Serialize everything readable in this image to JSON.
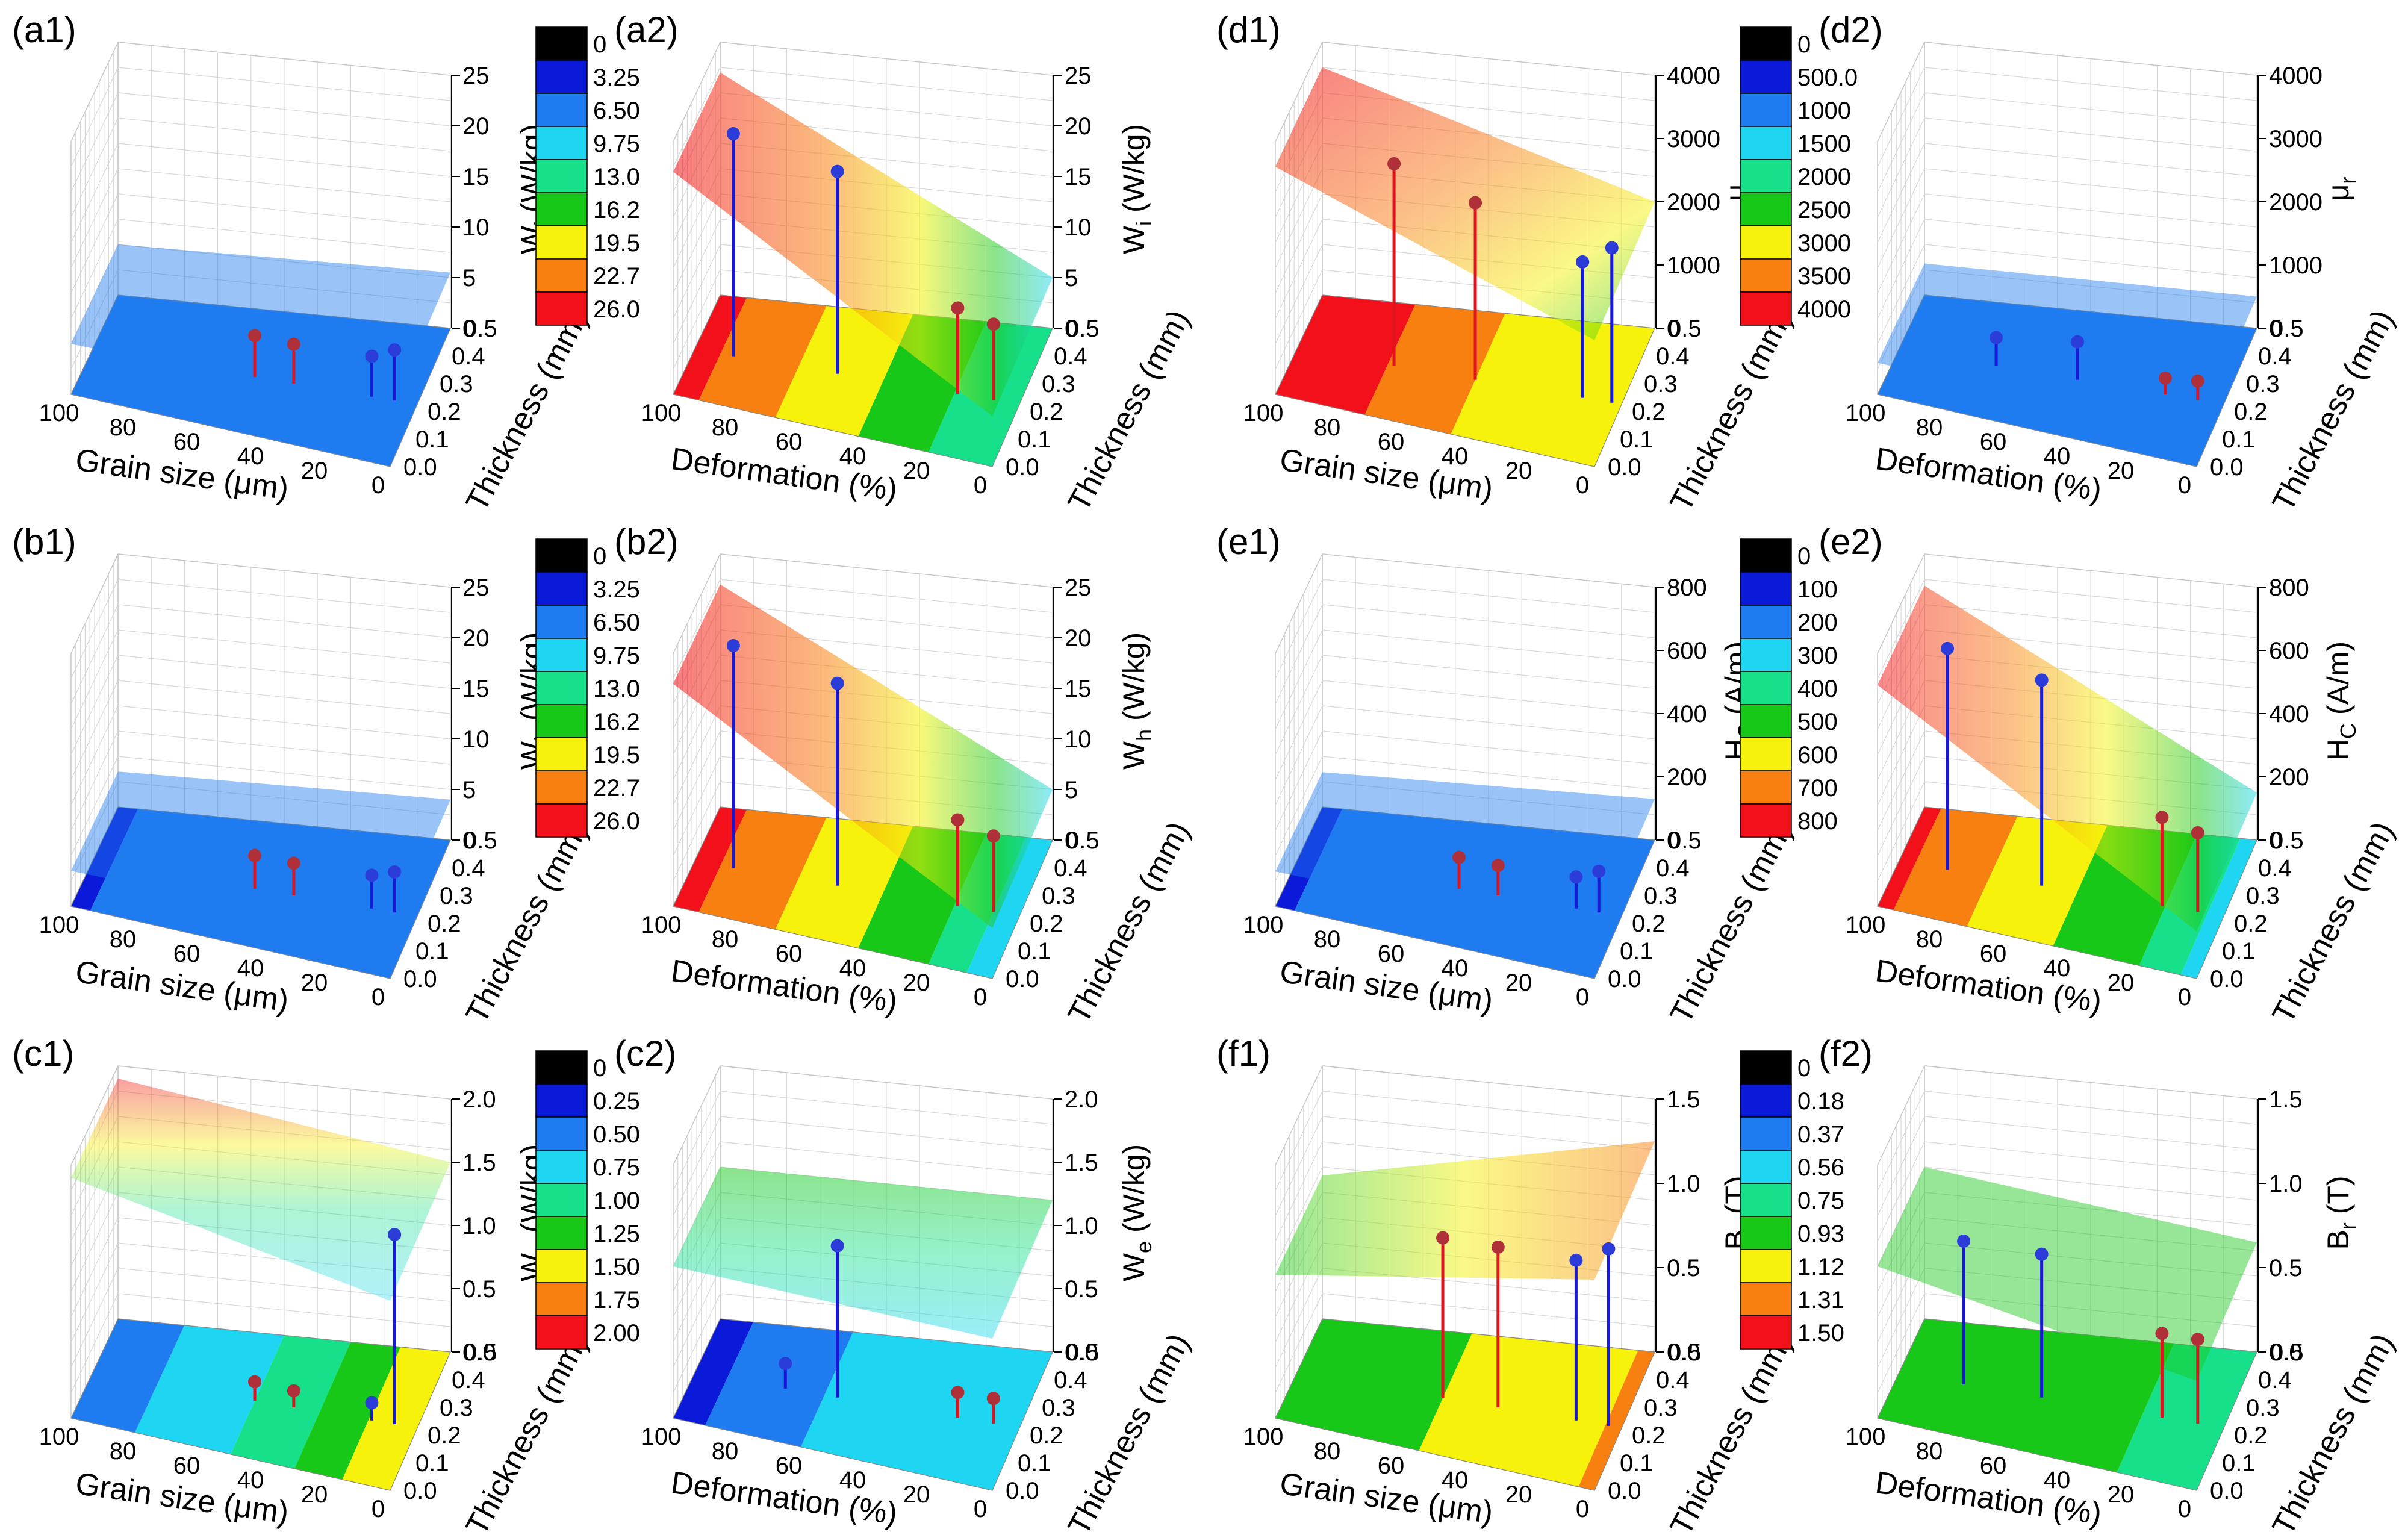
{
  "chart_data": [
    {
      "id": "a1",
      "type": "surface3d",
      "panel_label": "(a1)",
      "x_axis": {
        "label": "Grain size (μm)",
        "ticks": [
          "100",
          "80",
          "60",
          "40",
          "20",
          "0"
        ]
      },
      "y_axis": {
        "label": "Thickness (mm)",
        "ticks": [
          "0.0",
          "0.1",
          "0.2",
          "0.3",
          "0.4",
          "0.5"
        ]
      },
      "z_axis": {
        "label_base": "W",
        "label_sub": "i",
        "label_unit": " (W/kg)",
        "ticks": [
          "0",
          "5",
          "10",
          "15",
          "20",
          "25"
        ],
        "range": [
          0,
          25
        ]
      },
      "colorbar": [
        "0",
        "3.25",
        "6.50",
        "9.75",
        "13.0",
        "16.2",
        "19.5",
        "22.7",
        "26.0"
      ],
      "surface_z": [
        5,
        6,
        5.5
      ],
      "floor_bands": [
        [
          0,
          1,
          2
        ]
      ],
      "stems": [
        {
          "x": 50,
          "z": 4.1,
          "type": "red"
        },
        {
          "x": 38,
          "z": 3.9,
          "type": "red"
        },
        {
          "x": 14,
          "z": 4.0,
          "type": "blue"
        },
        {
          "x": 7,
          "z": 5.0,
          "type": "blue"
        }
      ]
    },
    {
      "id": "a2",
      "type": "surface3d",
      "panel_label": "(a2)",
      "x_axis": {
        "label": "Deformation (%)",
        "ticks": [
          "100",
          "80",
          "60",
          "40",
          "20",
          "0"
        ]
      },
      "y_axis": {
        "label": "Thickness (mm)",
        "ticks": [
          "0.0",
          "0.1",
          "0.2",
          "0.3",
          "0.4",
          "0.5"
        ]
      },
      "z_axis": {
        "label_base": "W",
        "label_sub": "i",
        "label_unit": " (W/kg)",
        "ticks": [
          "0",
          "5",
          "10",
          "15",
          "20",
          "25"
        ],
        "range": [
          0,
          25
        ]
      },
      "surface_z": [
        22,
        15,
        5
      ],
      "floor_bands": [
        [
          0,
          1,
          2
        ]
      ],
      "stems": [
        {
          "x": 88,
          "z": 22,
          "type": "blue"
        },
        {
          "x": 56,
          "z": 20,
          "type": "blue"
        },
        {
          "x": 19,
          "z": 8.5,
          "type": "red"
        },
        {
          "x": 8,
          "z": 7.5,
          "type": "red"
        }
      ]
    },
    {
      "id": "d1",
      "type": "surface3d",
      "panel_label": "(d1)",
      "x_axis": {
        "label": "Grain size (μm)",
        "ticks": [
          "100",
          "80",
          "60",
          "40",
          "20",
          "0"
        ]
      },
      "y_axis": {
        "label": "Thickness (mm)",
        "ticks": [
          "0.0",
          "0.1",
          "0.2",
          "0.3",
          "0.4",
          "0.5"
        ]
      },
      "z_axis": {
        "label_base": "μ",
        "label_sub": "r",
        "label_unit": "",
        "ticks": [
          "0",
          "1000",
          "2000",
          "3000",
          "4000"
        ],
        "range": [
          0,
          4000
        ]
      },
      "colorbar": [
        "0",
        "500.0",
        "1000",
        "1500",
        "2000",
        "2500",
        "3000",
        "3500",
        "4000"
      ],
      "surface_z": [
        3600,
        2800,
        2000
      ],
      "floor_bands": [
        [
          0,
          1,
          2
        ]
      ],
      "stems": [
        {
          "x": 70,
          "z": 3200,
          "type": "red"
        },
        {
          "x": 45,
          "z": 2800,
          "type": "red"
        },
        {
          "x": 12,
          "z": 2150,
          "type": "blue"
        },
        {
          "x": 3,
          "z": 2450,
          "type": "blue"
        }
      ]
    },
    {
      "id": "d2",
      "type": "surface3d",
      "panel_label": "(d2)",
      "x_axis": {
        "label": "Deformation (%)",
        "ticks": [
          "100",
          "80",
          "60",
          "40",
          "20",
          "0"
        ]
      },
      "y_axis": {
        "label": "Thickness (mm)",
        "ticks": [
          "0.0",
          "0.1",
          "0.2",
          "0.3",
          "0.4",
          "0.5"
        ]
      },
      "z_axis": {
        "label_base": "μ",
        "label_sub": "r",
        "label_unit": "",
        "ticks": [
          "0",
          "1000",
          "2000",
          "3000",
          "4000"
        ],
        "range": [
          0,
          4000
        ]
      },
      "surface_z": [
        500,
        500,
        500
      ],
      "floor_bands": [
        [
          0,
          1,
          2
        ]
      ],
      "stems": [
        {
          "x": 70,
          "z": 450,
          "type": "blue"
        },
        {
          "x": 45,
          "z": 600,
          "type": "blue"
        },
        {
          "x": 18,
          "z": 260,
          "type": "red"
        },
        {
          "x": 8,
          "z": 300,
          "type": "red"
        }
      ]
    },
    {
      "id": "b1",
      "type": "surface3d",
      "panel_label": "(b1)",
      "x_axis": {
        "label": "Grain size (μm)",
        "ticks": [
          "100",
          "80",
          "60",
          "40",
          "20",
          "0"
        ]
      },
      "y_axis": {
        "label": "Thickness (mm)",
        "ticks": [
          "0.0",
          "0.1",
          "0.2",
          "0.3",
          "0.4",
          "0.5"
        ]
      },
      "z_axis": {
        "label_base": "W",
        "label_sub": "h",
        "label_unit": " (W/kg)",
        "ticks": [
          "0",
          "5",
          "10",
          "15",
          "20",
          "25"
        ],
        "range": [
          0,
          25
        ]
      },
      "colorbar": [
        "0",
        "3.25",
        "6.50",
        "9.75",
        "13.0",
        "16.2",
        "19.5",
        "22.7",
        "26.0"
      ],
      "surface_z": [
        3.5,
        4,
        4
      ],
      "floor_bands": [
        [
          0,
          1,
          2
        ]
      ],
      "stems": [
        {
          "x": 50,
          "z": 3.3,
          "type": "red"
        },
        {
          "x": 38,
          "z": 3.2,
          "type": "red"
        },
        {
          "x": 14,
          "z": 3.3,
          "type": "blue"
        },
        {
          "x": 7,
          "z": 4.0,
          "type": "blue"
        }
      ]
    },
    {
      "id": "b2",
      "type": "surface3d",
      "panel_label": "(b2)",
      "x_axis": {
        "label": "Deformation (%)",
        "ticks": [
          "100",
          "80",
          "60",
          "40",
          "20",
          "0"
        ]
      },
      "y_axis": {
        "label": "Thickness (mm)",
        "ticks": [
          "0.0",
          "0.1",
          "0.2",
          "0.3",
          "0.4",
          "0.5"
        ]
      },
      "z_axis": {
        "label_base": "W",
        "label_sub": "h",
        "label_unit": " (W/kg)",
        "ticks": [
          "0",
          "5",
          "10",
          "15",
          "20",
          "25"
        ],
        "range": [
          0,
          25
        ]
      },
      "surface_z": [
        22,
        15,
        5
      ],
      "floor_bands": [
        [
          0,
          1,
          2
        ]
      ],
      "stems": [
        {
          "x": 88,
          "z": 22,
          "type": "blue"
        },
        {
          "x": 56,
          "z": 20,
          "type": "blue"
        },
        {
          "x": 19,
          "z": 8.5,
          "type": "red"
        },
        {
          "x": 8,
          "z": 7.5,
          "type": "red"
        }
      ]
    },
    {
      "id": "e1",
      "type": "surface3d",
      "panel_label": "(e1)",
      "x_axis": {
        "label": "Grain size (μm)",
        "ticks": [
          "100",
          "80",
          "60",
          "40",
          "20",
          "0"
        ]
      },
      "y_axis": {
        "label": "Thickness (mm)",
        "ticks": [
          "0.0",
          "0.1",
          "0.2",
          "0.3",
          "0.4",
          "0.5"
        ]
      },
      "z_axis": {
        "label_base": "H",
        "label_sub": "C",
        "label_unit": " (A/m)",
        "ticks": [
          "0",
          "200",
          "400",
          "600",
          "800"
        ],
        "range": [
          0,
          800
        ]
      },
      "colorbar": [
        "0",
        "100",
        "200",
        "300",
        "400",
        "500",
        "600",
        "700",
        "800"
      ],
      "surface_z": [
        110,
        130,
        130
      ],
      "floor_bands": [
        [
          0,
          1,
          2
        ]
      ],
      "stems": [
        {
          "x": 50,
          "z": 100,
          "type": "red"
        },
        {
          "x": 38,
          "z": 95,
          "type": "red"
        },
        {
          "x": 14,
          "z": 100,
          "type": "blue"
        },
        {
          "x": 7,
          "z": 130,
          "type": "blue"
        }
      ]
    },
    {
      "id": "e2",
      "type": "surface3d",
      "panel_label": "(e2)",
      "x_axis": {
        "label": "Deformation (%)",
        "ticks": [
          "100",
          "80",
          "60",
          "40",
          "20",
          "0"
        ]
      },
      "y_axis": {
        "label": "Thickness (mm)",
        "ticks": [
          "0.0",
          "0.1",
          "0.2",
          "0.3",
          "0.4",
          "0.5"
        ]
      },
      "z_axis": {
        "label_base": "H",
        "label_sub": "C",
        "label_unit": " (A/m)",
        "ticks": [
          "0",
          "200",
          "400",
          "600",
          "800"
        ],
        "range": [
          0,
          800
        ]
      },
      "surface_z": [
        700,
        450,
        150
      ],
      "floor_bands": [
        [
          0,
          1,
          2
        ]
      ],
      "stems": [
        {
          "x": 85,
          "z": 700,
          "type": "blue"
        },
        {
          "x": 56,
          "z": 650,
          "type": "blue"
        },
        {
          "x": 19,
          "z": 280,
          "type": "red"
        },
        {
          "x": 8,
          "z": 250,
          "type": "red"
        }
      ]
    },
    {
      "id": "c1",
      "type": "surface3d",
      "panel_label": "(c1)",
      "x_axis": {
        "label": "Grain size (μm)",
        "ticks": [
          "100",
          "80",
          "60",
          "40",
          "20",
          "0"
        ]
      },
      "y_axis": {
        "label": "Thickness (mm)",
        "ticks": [
          "0.0",
          "0.1",
          "0.2",
          "0.3",
          "0.4",
          "0.5"
        ]
      },
      "z_axis": {
        "label_base": "W",
        "label_sub": "e",
        "label_unit": " (W/kg)",
        "ticks": [
          "0.0",
          "0.5",
          "1.0",
          "1.5",
          "2.0"
        ],
        "range": [
          0,
          2
        ]
      },
      "colorbar": [
        "0",
        "0.25",
        "0.50",
        "0.75",
        "1.00",
        "1.25",
        "1.50",
        "1.75",
        "2.00"
      ],
      "surface_z": [
        1.9,
        1.7,
        1.5
      ],
      "floor_bands": [
        [
          0,
          1,
          2
        ]
      ],
      "stems": [
        {
          "x": 50,
          "z": 0.15,
          "type": "red"
        },
        {
          "x": 38,
          "z": 0.13,
          "type": "red"
        },
        {
          "x": 14,
          "z": 0.14,
          "type": "blue"
        },
        {
          "x": 7,
          "z": 1.5,
          "type": "blue"
        }
      ]
    },
    {
      "id": "c2",
      "type": "surface3d",
      "panel_label": "(c2)",
      "x_axis": {
        "label": "Deformation (%)",
        "ticks": [
          "100",
          "80",
          "60",
          "40",
          "20",
          "0"
        ]
      },
      "y_axis": {
        "label": "Thickness (mm)",
        "ticks": [
          "0.0",
          "0.1",
          "0.2",
          "0.3",
          "0.4",
          "0.5"
        ]
      },
      "z_axis": {
        "label_base": "W",
        "label_sub": "e",
        "label_unit": " (W/kg)",
        "ticks": [
          "0.0",
          "0.5",
          "1.0",
          "1.5",
          "2.0"
        ],
        "range": [
          0,
          2
        ]
      },
      "surface_z": [
        1.2,
        1.2,
        1.2
      ],
      "floor_bands": [
        [
          0,
          1,
          2
        ]
      ],
      "stems": [
        {
          "x": 72,
          "z": 0.2,
          "type": "blue"
        },
        {
          "x": 56,
          "z": 1.2,
          "type": "blue"
        },
        {
          "x": 19,
          "z": 0.2,
          "type": "red"
        },
        {
          "x": 8,
          "z": 0.2,
          "type": "red"
        }
      ]
    },
    {
      "id": "f1",
      "type": "surface3d",
      "panel_label": "(f1)",
      "x_axis": {
        "label": "Grain size (μm)",
        "ticks": [
          "100",
          "80",
          "60",
          "40",
          "20",
          "0"
        ]
      },
      "y_axis": {
        "label": "Thickness (mm)",
        "ticks": [
          "0.0",
          "0.1",
          "0.2",
          "0.3",
          "0.4",
          "0.5"
        ]
      },
      "z_axis": {
        "label_base": "B",
        "label_sub": "r",
        "label_unit": " (T)",
        "ticks": [
          "0.0",
          "0.5",
          "1.0",
          "1.5"
        ],
        "range": [
          0,
          1.5
        ]
      },
      "colorbar": [
        "0",
        "0.18",
        "0.37",
        "0.56",
        "0.75",
        "0.93",
        "1.12",
        "1.31",
        "1.50"
      ],
      "surface_z": [
        0.85,
        1.05,
        1.25
      ],
      "floor_bands": [
        [
          0,
          1,
          2
        ]
      ],
      "stems": [
        {
          "x": 55,
          "z": 0.95,
          "type": "red"
        },
        {
          "x": 38,
          "z": 0.95,
          "type": "red"
        },
        {
          "x": 14,
          "z": 0.95,
          "type": "blue"
        },
        {
          "x": 4,
          "z": 1.05,
          "type": "blue"
        }
      ]
    },
    {
      "id": "f2",
      "type": "surface3d",
      "panel_label": "(f2)",
      "x_axis": {
        "label": "Deformation (%)",
        "ticks": [
          "100",
          "80",
          "60",
          "40",
          "20",
          "0"
        ]
      },
      "y_axis": {
        "label": "Thickness (mm)",
        "ticks": [
          "0.0",
          "0.1",
          "0.2",
          "0.3",
          "0.4",
          "0.5"
        ]
      },
      "z_axis": {
        "label_base": "B",
        "label_sub": "r",
        "label_unit": " (T)",
        "ticks": [
          "0.0",
          "0.5",
          "1.0",
          "1.5"
        ],
        "range": [
          0,
          1.5
        ]
      },
      "surface_z": [
        0.9,
        0.8,
        0.65
      ],
      "floor_bands": [
        [
          0,
          1,
          2
        ]
      ],
      "stems": [
        {
          "x": 80,
          "z": 0.85,
          "type": "blue"
        },
        {
          "x": 56,
          "z": 0.85,
          "type": "blue"
        },
        {
          "x": 19,
          "z": 0.5,
          "type": "red"
        },
        {
          "x": 8,
          "z": 0.5,
          "type": "red"
        }
      ]
    }
  ],
  "colors": {
    "colorbar_fills": [
      "#000000",
      "#0a1ad8",
      "#1f7cf0",
      "#1ed6f2",
      "#16e08a",
      "#18c818",
      "#f6f20c",
      "#f88010",
      "#f2101a"
    ],
    "stem_red": "#e0141e",
    "stem_blue": "#1818d8",
    "grid": "#d8d8d8",
    "axis": "#000000"
  }
}
